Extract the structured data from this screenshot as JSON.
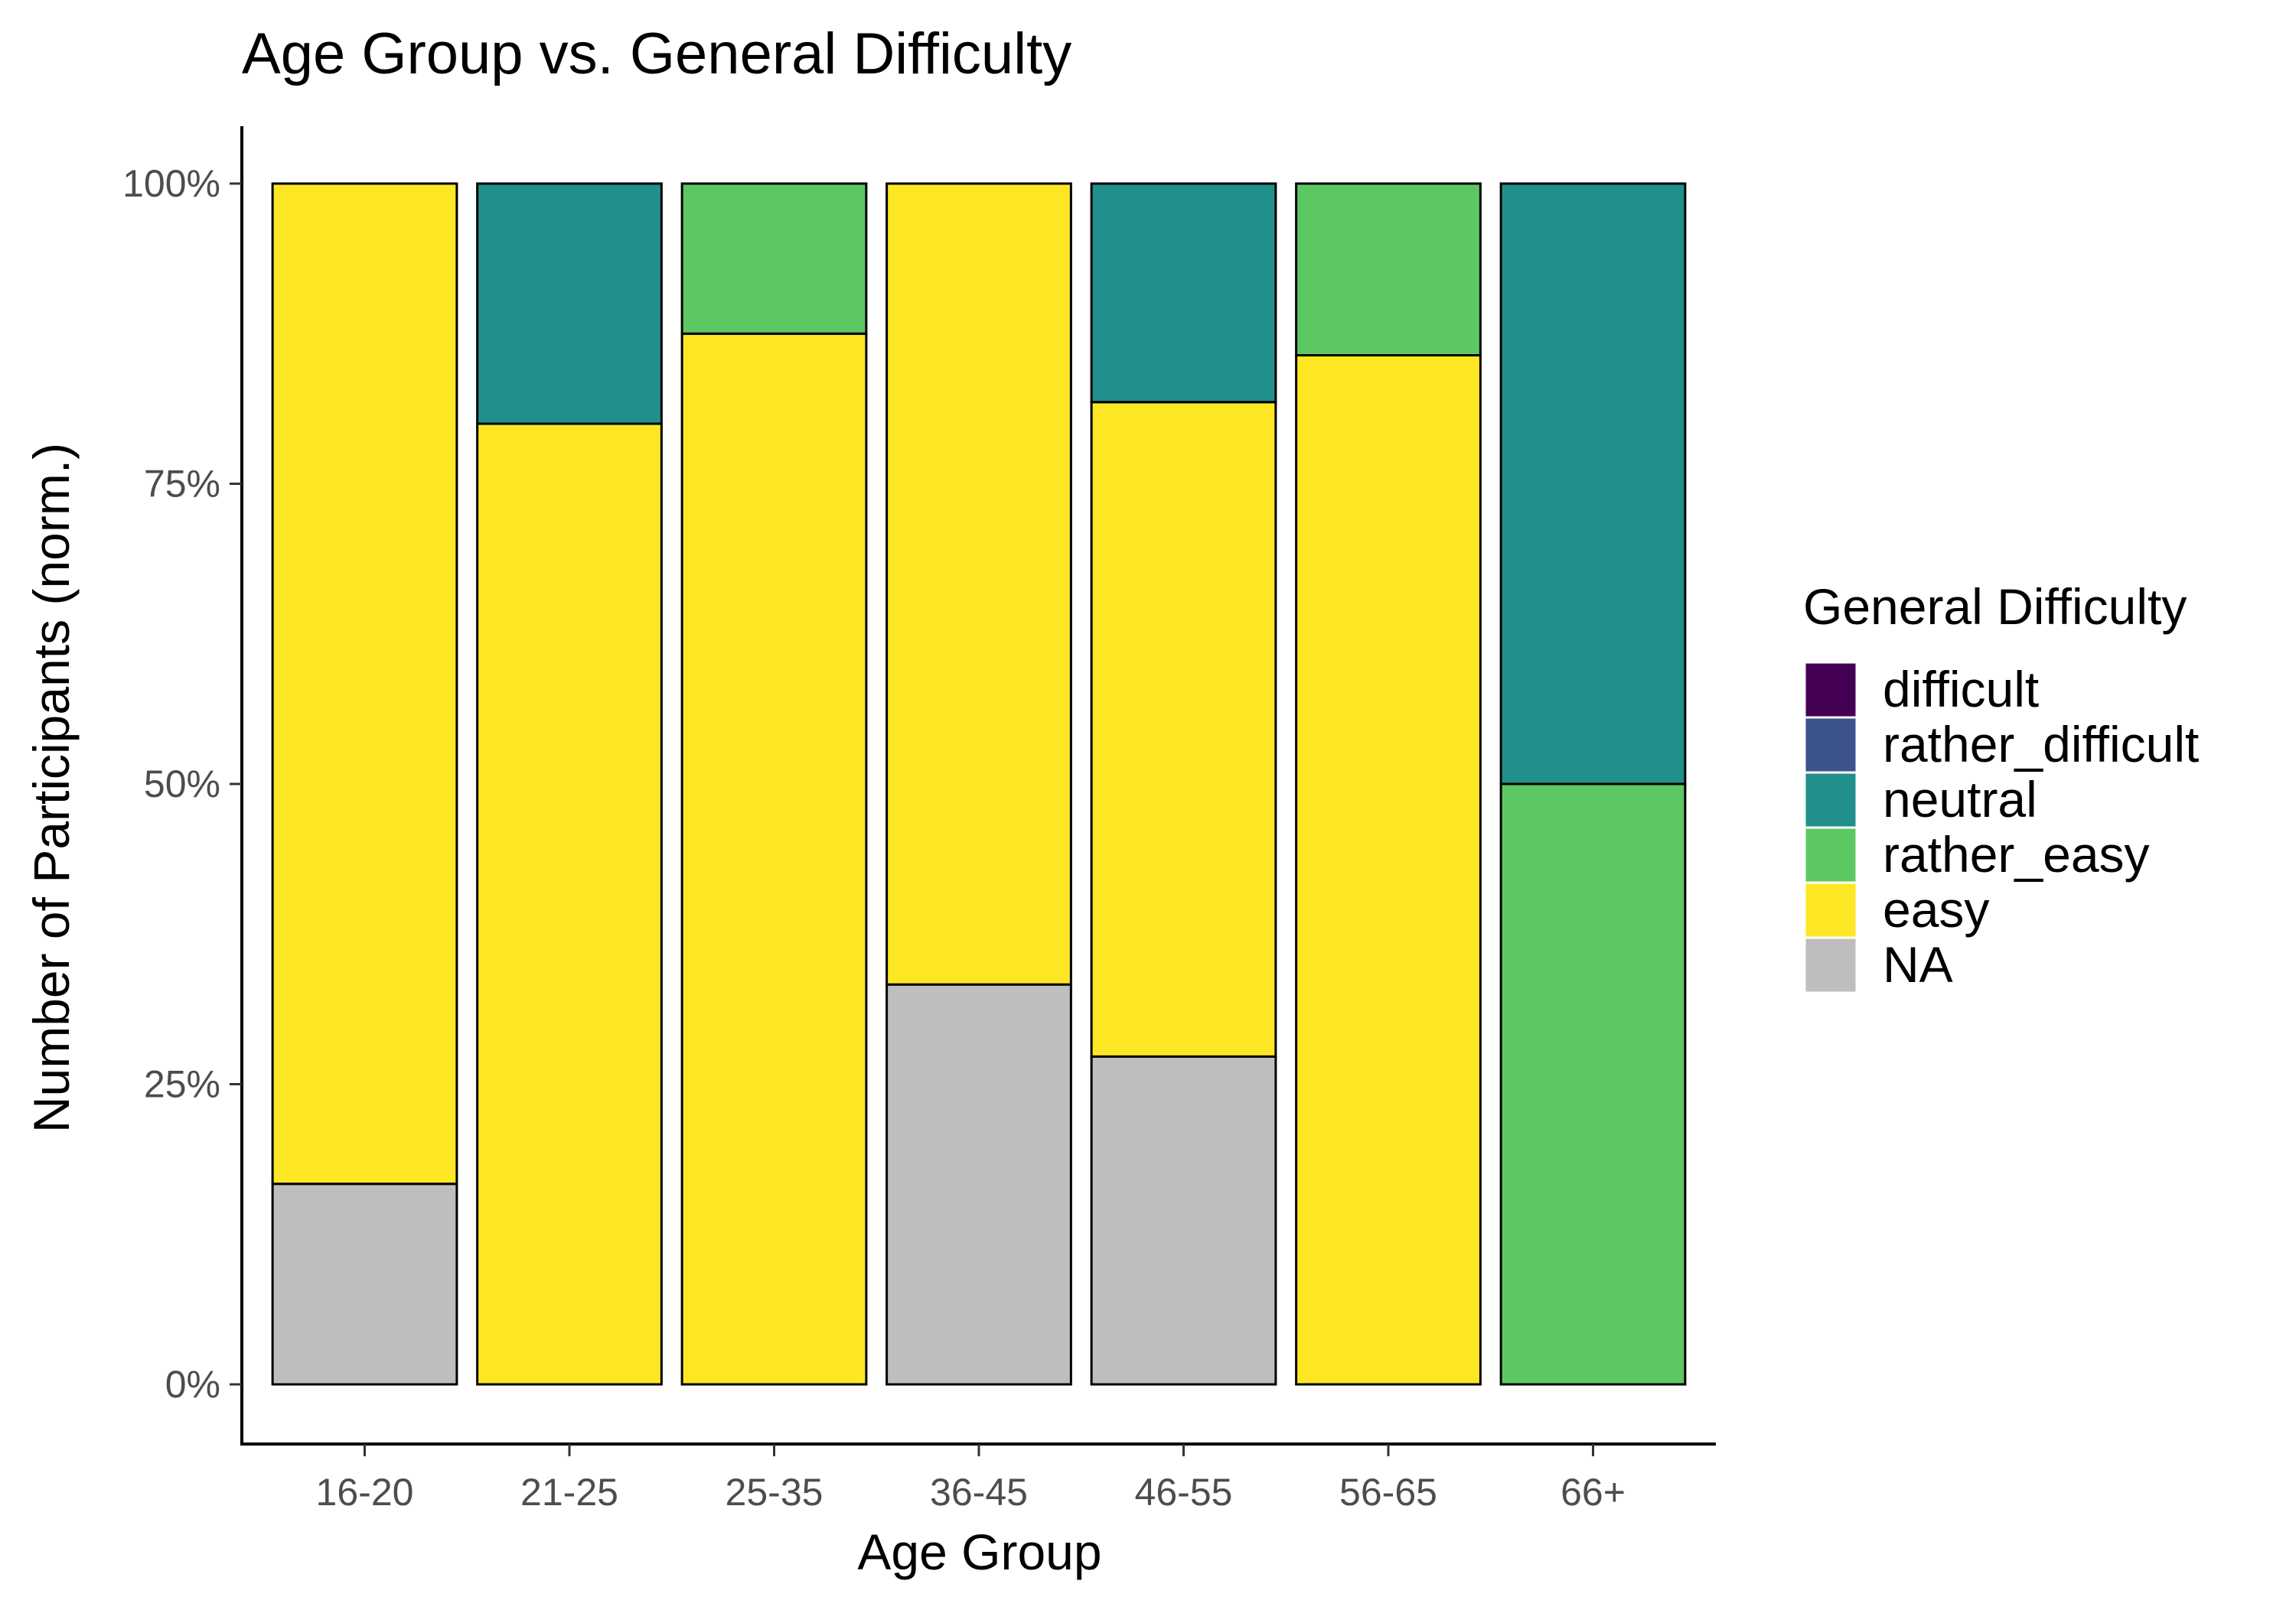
{
  "chart_data": {
    "type": "bar",
    "stacked": true,
    "normalized": true,
    "title": "Age Group vs. General Difficulty",
    "xlabel": "Age Group",
    "ylabel": "Number of Participants (norm.)",
    "categories": [
      "16-20",
      "21-25",
      "25-35",
      "36-45",
      "46-55",
      "56-65",
      "66+"
    ],
    "y_ticks": [
      0,
      0.25,
      0.5,
      0.75,
      1
    ],
    "y_tick_labels": [
      "0%",
      "25%",
      "50%",
      "75%",
      "100%"
    ],
    "ylim": [
      0,
      1
    ],
    "grid": false,
    "legend": {
      "title": "General Difficulty",
      "position": "right"
    },
    "series": [
      {
        "name": "difficult",
        "color": "#440154",
        "values": [
          0,
          0,
          0,
          0,
          0,
          0,
          0
        ]
      },
      {
        "name": "rather_difficult",
        "color": "#3B528B",
        "values": [
          0,
          0,
          0,
          0,
          0,
          0,
          0
        ]
      },
      {
        "name": "neutral",
        "color": "#21908C",
        "values": [
          0,
          0.2,
          0,
          0,
          0.182,
          0,
          0.5
        ]
      },
      {
        "name": "rather_easy",
        "color": "#5DC863",
        "values": [
          0,
          0,
          0.125,
          0,
          0,
          0.143,
          0.5
        ]
      },
      {
        "name": "easy",
        "color": "#FDE725",
        "values": [
          0.833,
          0.8,
          0.875,
          0.667,
          0.545,
          0.857,
          0
        ]
      },
      {
        "name": "NA",
        "color": "#BEBEBE",
        "values": [
          0.167,
          0,
          0,
          0.333,
          0.273,
          0,
          0
        ]
      }
    ]
  }
}
